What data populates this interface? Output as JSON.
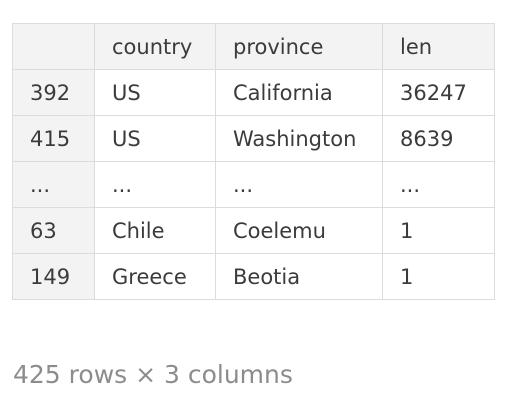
{
  "table": {
    "columns": [
      "",
      "country",
      "province",
      "len"
    ],
    "rows": [
      {
        "index": "392",
        "country": "US",
        "province": "California",
        "len": "36247"
      },
      {
        "index": "415",
        "country": "US",
        "province": "Washington",
        "len": "8639"
      },
      {
        "index": "...",
        "country": "...",
        "province": "...",
        "len": "..."
      },
      {
        "index": "63",
        "country": "Chile",
        "province": "Coelemu",
        "len": "1"
      },
      {
        "index": "149",
        "country": "Greece",
        "province": "Beotia",
        "len": "1"
      }
    ]
  },
  "footer": {
    "shape_text": "425 rows × 3 columns"
  }
}
